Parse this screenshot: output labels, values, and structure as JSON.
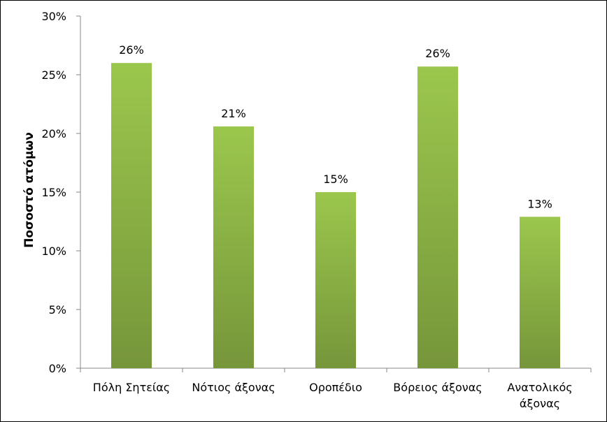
{
  "chart_data": {
    "type": "bar",
    "title": "",
    "xlabel": "",
    "ylabel": "Ποσοστό ατόμων",
    "categories": [
      [
        "Πόλη Σητείας"
      ],
      [
        "Νότιος άξονας"
      ],
      [
        "Οροπέδιο"
      ],
      [
        "Βόρειος άξονας"
      ],
      [
        "Ανατολικός",
        "άξονας"
      ]
    ],
    "values": [
      26,
      20.6,
      15,
      25.7,
      12.9
    ],
    "data_labels": [
      "26%",
      "21%",
      "15%",
      "26%",
      "13%"
    ],
    "ylim": [
      0,
      30
    ],
    "yticks": [
      0,
      5,
      10,
      15,
      20,
      25,
      30
    ],
    "ytick_labels": [
      "0%",
      "5%",
      "10%",
      "15%",
      "20%",
      "25%",
      "30%"
    ],
    "grid": false,
    "legend": "none",
    "colors": {
      "bar_top": "#9bc74d",
      "bar_bottom": "#76963a",
      "axis": "#888888",
      "frame": "#000000"
    }
  }
}
